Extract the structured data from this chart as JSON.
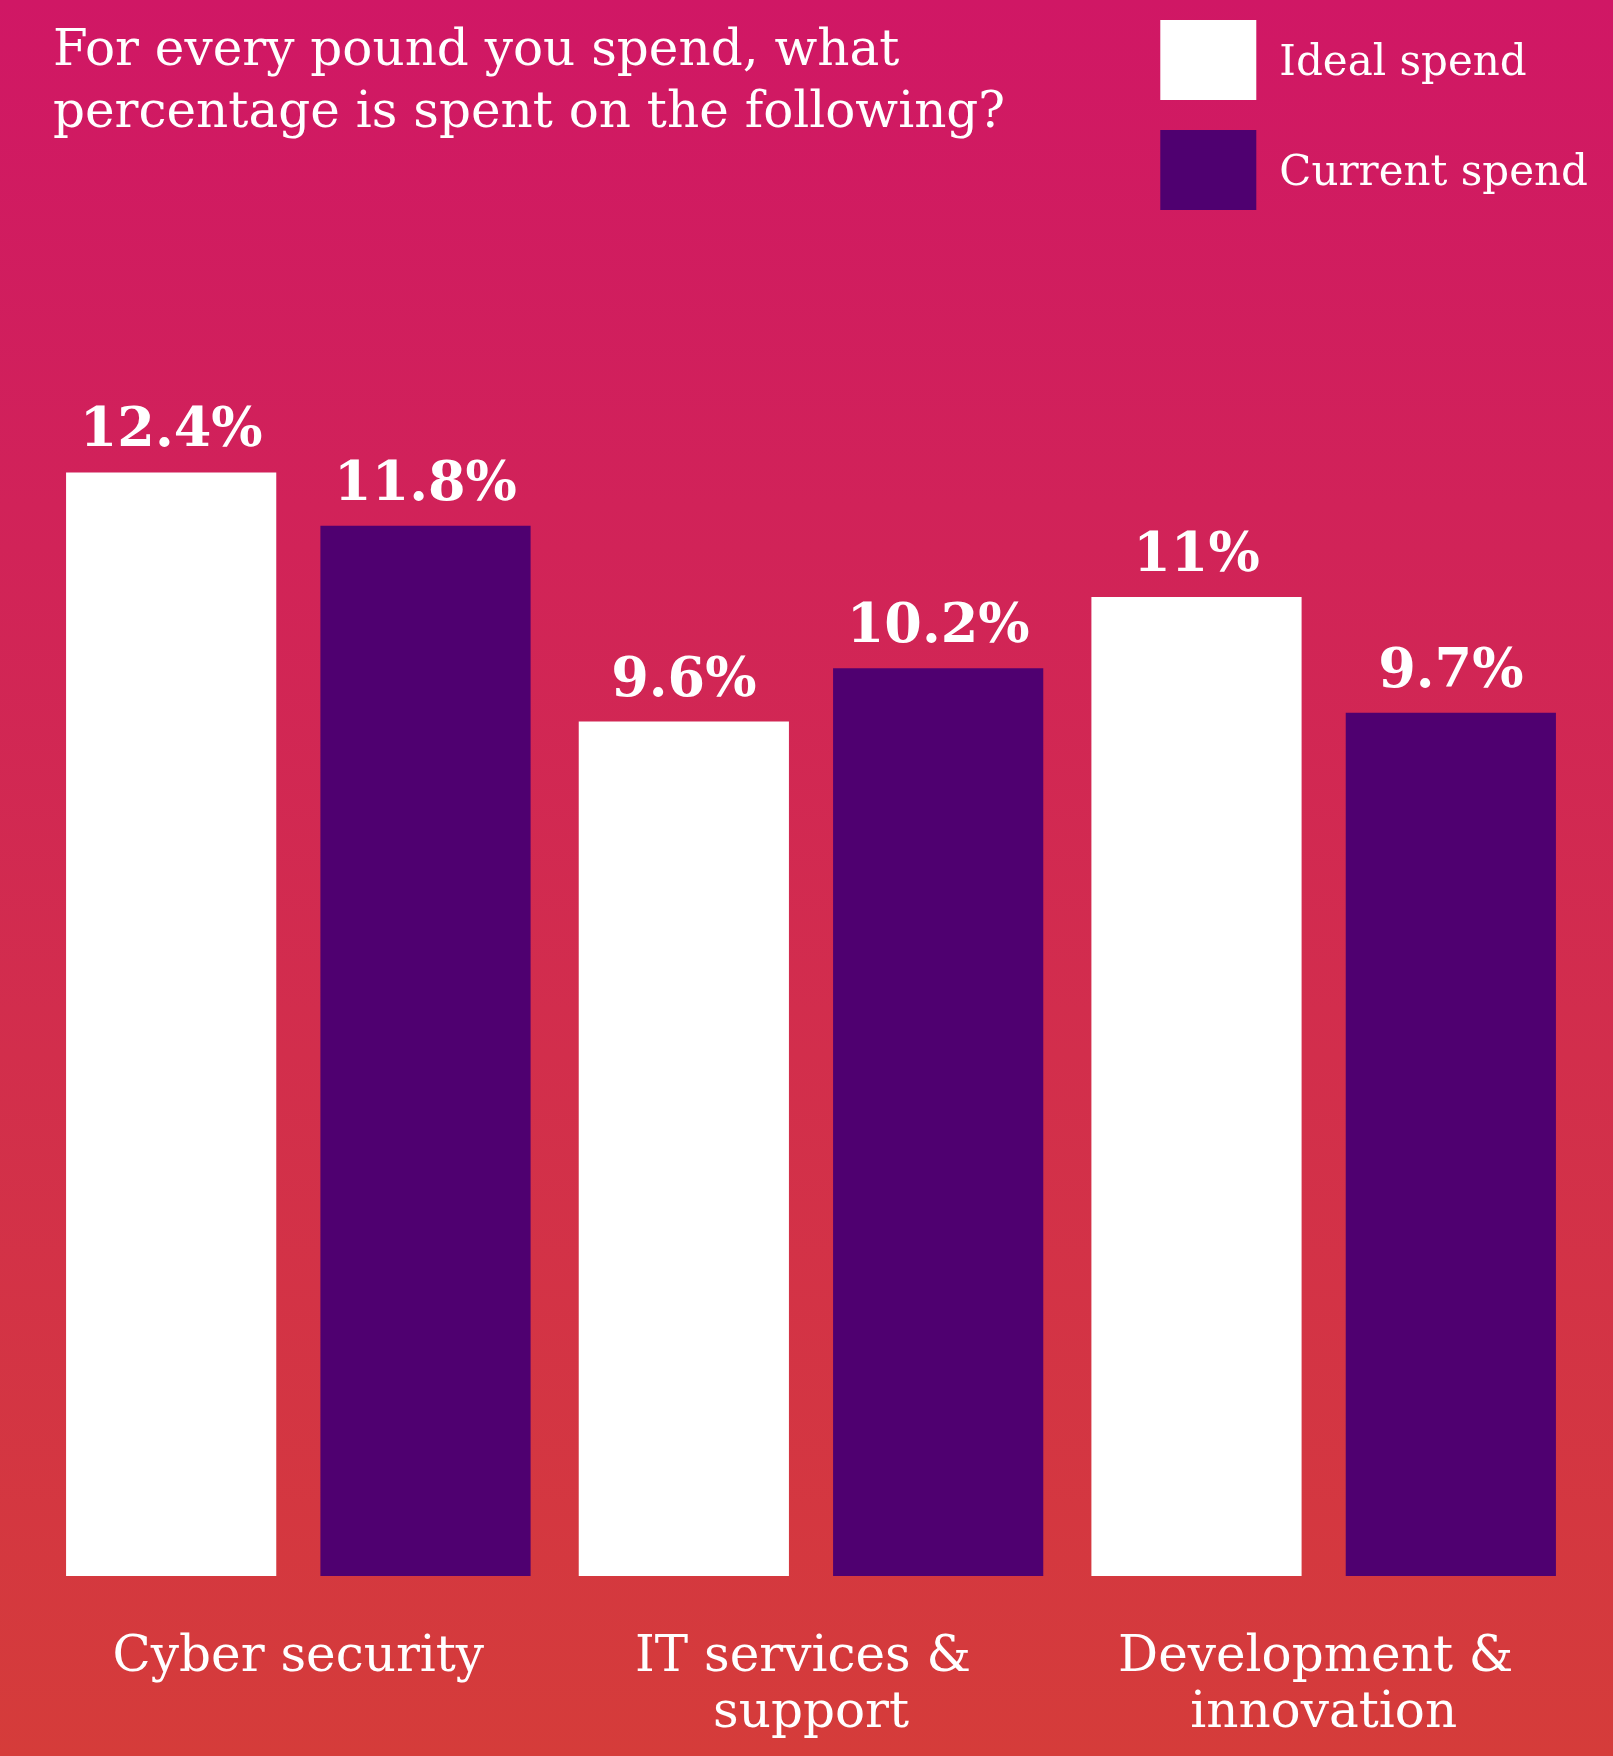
{
  "chart_data": {
    "type": "bar",
    "title": "For every pound you spend, what percentage is spent on the following?",
    "categories": [
      "Cyber security",
      "IT services & support",
      "Development & innovation"
    ],
    "series": [
      {
        "name": "Ideal spend",
        "color": "#ffffff",
        "values": [
          12.4,
          9.6,
          11
        ],
        "value_labels": [
          "12.4%",
          "9.6%",
          "11%"
        ]
      },
      {
        "name": "Current spend",
        "color": "#4f0070",
        "values": [
          11.8,
          10.2,
          9.7
        ],
        "value_labels": [
          "11.8%",
          "10.2%",
          "9.7%"
        ]
      }
    ],
    "legend": "top right",
    "grid": false
  }
}
